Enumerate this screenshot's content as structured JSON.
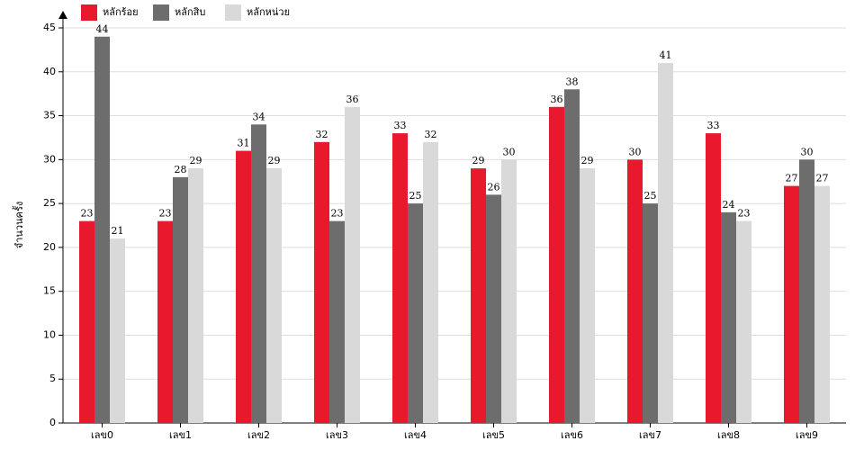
{
  "chart_data": {
    "type": "bar",
    "y_label": "จำนวนครั้ง",
    "categories": [
      "เลข0",
      "เลข1",
      "เลข2",
      "เลข3",
      "เลข4",
      "เลข5",
      "เลข6",
      "เลข7",
      "เลข8",
      "เลข9"
    ],
    "series": [
      {
        "name": "หลักร้อย",
        "color": "#e8192c",
        "values": [
          23,
          23,
          31,
          32,
          33,
          29,
          36,
          30,
          33,
          27
        ]
      },
      {
        "name": "หลักสิบ",
        "color": "#6d6d6d",
        "values": [
          44,
          28,
          34,
          23,
          25,
          26,
          38,
          25,
          24,
          30
        ]
      },
      {
        "name": "หลักหน่วย",
        "color": "#d9d9d9",
        "values": [
          21,
          29,
          29,
          36,
          32,
          30,
          29,
          41,
          23,
          27
        ]
      }
    ],
    "ylim": [
      0,
      45
    ],
    "yticks": [
      0,
      5,
      10,
      15,
      20,
      25,
      30,
      35,
      40,
      45
    ],
    "grid": true,
    "legend": "top-left"
  }
}
